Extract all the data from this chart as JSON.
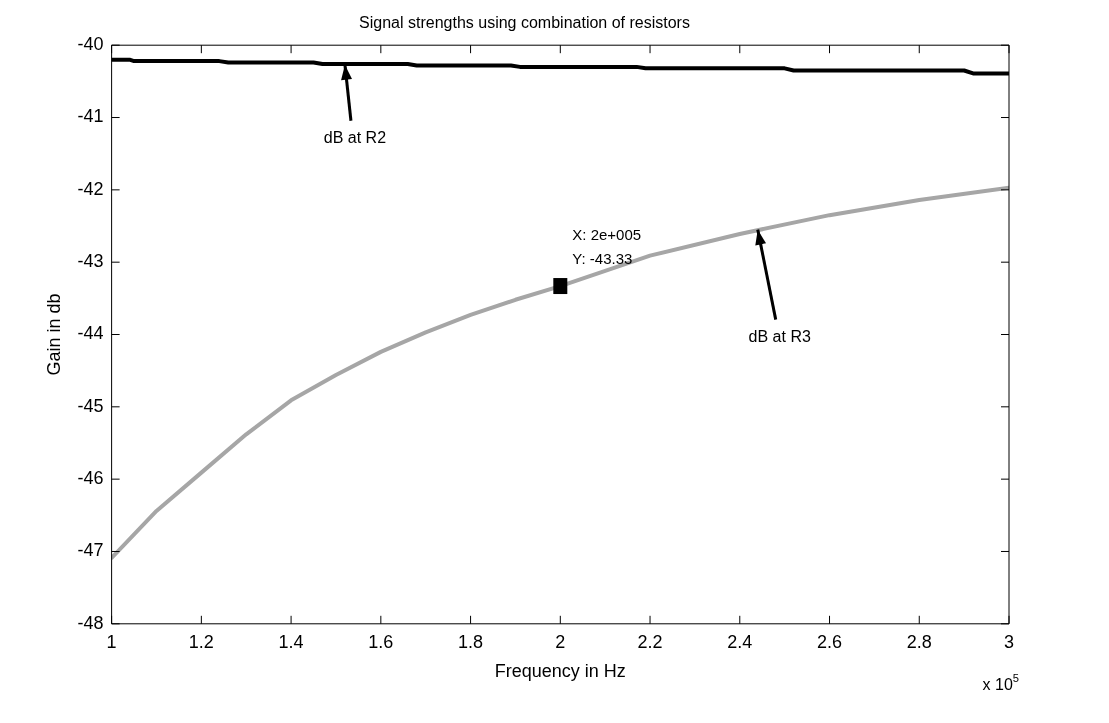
{
  "chart_data": {
    "type": "line",
    "title": "Signal strengths using combination of resistors",
    "xlabel": "Frequency in Hz",
    "ylabel": "Gain in db",
    "series": [
      {
        "color": "#000000",
        "x": [
          1,
          1.04,
          1.05,
          1.24,
          1.26,
          1.45,
          1.47,
          1.66,
          1.68,
          1.89,
          1.91,
          2.17,
          2.19,
          2.5,
          2.52,
          2.9,
          2.92,
          3
        ],
        "values": [
          -40.2,
          -40.2,
          -40.22,
          -40.22,
          -40.24,
          -40.24,
          -40.26,
          -40.26,
          -40.28,
          -40.28,
          -40.3,
          -40.3,
          -40.32,
          -40.32,
          -40.35,
          -40.35,
          -40.39,
          -40.39
        ]
      },
      {
        "color": "#a6a6a6",
        "x": [
          1,
          1.1,
          1.2,
          1.3,
          1.4,
          1.5,
          1.6,
          1.7,
          1.8,
          1.9,
          2,
          2.2,
          2.4,
          2.6,
          2.8,
          3
        ],
        "values": [
          -47.09,
          -46.44,
          -45.91,
          -45.38,
          -44.91,
          -44.56,
          -44.24,
          -43.97,
          -43.73,
          -43.52,
          -43.33,
          -42.91,
          -42.61,
          -42.35,
          -42.14,
          -41.97
        ]
      }
    ],
    "xlim": [
      1,
      3
    ],
    "xticks": [
      1,
      1.2,
      1.4,
      1.6,
      1.8,
      2,
      2.2,
      2.4,
      2.6,
      2.8,
      3
    ],
    "ylim": [
      -48,
      -40
    ],
    "yticks": [
      -48,
      -47,
      -46,
      -45,
      -44,
      -43,
      -42,
      -41,
      -40
    ],
    "marker": "none",
    "line_style": "solid",
    "legend": false,
    "annotations": [
      {
        "text": "dB at R2",
        "x": 1.52,
        "y": -40.27
      },
      {
        "text": "dB at R3",
        "x": 2.44,
        "y": -42.55
      },
      {
        "text": "X: 2e+005\nY: -43.33",
        "x": 2,
        "y": -43.33
      },
      "x 10$^{5}$"
    ]
  }
}
